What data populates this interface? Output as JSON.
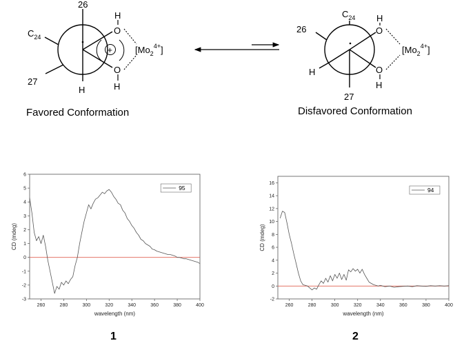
{
  "scheme": {
    "favored": {
      "caption": "Favored Conformation",
      "label_top": "26",
      "label_left": "C",
      "label_left_sub": "24",
      "label_lowerleft": "27",
      "label_bottom": "H",
      "label_oh_top_h": "H",
      "label_oh_top_o": "O",
      "label_oh_bottom_o": "O",
      "label_oh_bottom_h": "H",
      "metal": "[Mo",
      "metal_sub": "2",
      "metal_sup": "4+",
      "metal_close": "]",
      "plus": "+"
    },
    "disfavored": {
      "caption": "Disfavored Conformation",
      "label_top": "C",
      "label_top_sub": "24",
      "label_left": "26",
      "label_lowerleft": "H",
      "label_bottom": "27",
      "label_oh_top_h": "H",
      "label_oh_top_o": "O",
      "label_oh_bottom_o": "O",
      "label_oh_bottom_h": "H",
      "metal": "[Mo",
      "metal_sub": "2",
      "metal_sup": "4+",
      "metal_close": "]"
    }
  },
  "compound_labels": [
    "1",
    "2"
  ],
  "chart_data": [
    {
      "type": "line",
      "xlabel": "wavelength (nm)",
      "ylabel": "CD (mdeg)",
      "xlim": [
        250,
        400
      ],
      "ylim": [
        -3,
        6
      ],
      "xticks": [
        260,
        280,
        300,
        320,
        340,
        360,
        380,
        400
      ],
      "yticks": [
        -3,
        -2,
        -1,
        0,
        1,
        2,
        3,
        4,
        5,
        6
      ],
      "legend_position": "top-right",
      "zero_line_color": "#e06050",
      "series": [
        {
          "name": "95",
          "color": "#555555",
          "x": [
            250,
            252,
            254,
            256,
            258,
            260,
            262,
            264,
            266,
            268,
            270,
            272,
            274,
            276,
            278,
            280,
            282,
            284,
            286,
            288,
            290,
            292,
            294,
            296,
            298,
            300,
            302,
            304,
            306,
            308,
            310,
            312,
            314,
            316,
            318,
            320,
            322,
            324,
            326,
            328,
            330,
            332,
            334,
            336,
            338,
            340,
            342,
            344,
            346,
            348,
            350,
            352,
            354,
            356,
            358,
            360,
            362,
            364,
            366,
            368,
            370,
            372,
            374,
            376,
            378,
            380,
            382,
            384,
            386,
            388,
            390,
            392,
            394,
            396,
            398,
            400
          ],
          "y": [
            4.3,
            3.2,
            1.8,
            1.2,
            1.5,
            1.0,
            1.6,
            0.8,
            -0.2,
            -1.0,
            -1.8,
            -2.6,
            -2.1,
            -2.3,
            -1.8,
            -2.0,
            -1.7,
            -1.9,
            -1.6,
            -1.4,
            -0.6,
            0.0,
            1.0,
            1.8,
            2.6,
            3.2,
            3.8,
            3.5,
            3.9,
            4.2,
            4.3,
            4.5,
            4.7,
            4.6,
            4.8,
            4.9,
            4.7,
            4.4,
            4.2,
            3.9,
            3.8,
            3.4,
            3.2,
            2.8,
            2.6,
            2.3,
            2.1,
            1.8,
            1.6,
            1.3,
            1.2,
            1.0,
            0.9,
            0.8,
            0.6,
            0.55,
            0.45,
            0.4,
            0.35,
            0.3,
            0.25,
            0.2,
            0.2,
            0.15,
            0.1,
            0.0,
            0.0,
            -0.05,
            -0.1,
            -0.1,
            -0.15,
            -0.2,
            -0.25,
            -0.3,
            -0.35,
            -0.45
          ]
        }
      ]
    },
    {
      "type": "line",
      "xlabel": "wavelength (nm)",
      "ylabel": "CD (mdeg)",
      "xlim": [
        250,
        400
      ],
      "ylim": [
        -2,
        17
      ],
      "xticks": [
        260,
        280,
        300,
        320,
        340,
        360,
        380,
        400
      ],
      "yticks": [
        -2,
        0,
        2,
        4,
        6,
        8,
        10,
        12,
        14,
        16
      ],
      "legend_position": "top-right",
      "zero_line_color": "#e06050",
      "series": [
        {
          "name": "94",
          "color": "#555555",
          "x": [
            252,
            254,
            256,
            258,
            260,
            262,
            264,
            266,
            268,
            270,
            272,
            274,
            276,
            278,
            280,
            282,
            284,
            286,
            288,
            290,
            292,
            294,
            296,
            298,
            300,
            302,
            304,
            306,
            308,
            310,
            312,
            314,
            316,
            318,
            320,
            322,
            324,
            326,
            328,
            330,
            332,
            334,
            336,
            338,
            340,
            344,
            348,
            352,
            356,
            360,
            364,
            368,
            372,
            376,
            380,
            384,
            388,
            392,
            396,
            400
          ],
          "y": [
            10.5,
            11.6,
            11.4,
            9.8,
            8.0,
            6.6,
            5.0,
            3.5,
            2.0,
            0.8,
            0.2,
            0.1,
            0.0,
            -0.3,
            -0.6,
            -0.3,
            -0.5,
            0.2,
            0.8,
            0.4,
            1.2,
            0.6,
            1.6,
            0.8,
            1.8,
            1.2,
            2.0,
            1.0,
            1.8,
            0.9,
            2.5,
            2.2,
            2.7,
            2.3,
            2.6,
            2.0,
            2.6,
            1.8,
            1.2,
            0.6,
            0.4,
            0.2,
            0.1,
            0.0,
            0.1,
            -0.1,
            0.0,
            -0.2,
            -0.1,
            -0.05,
            0.0,
            -0.1,
            0.05,
            0.0,
            -0.05,
            0.05,
            0.0,
            0.05,
            0.0,
            0.05
          ]
        }
      ]
    }
  ]
}
